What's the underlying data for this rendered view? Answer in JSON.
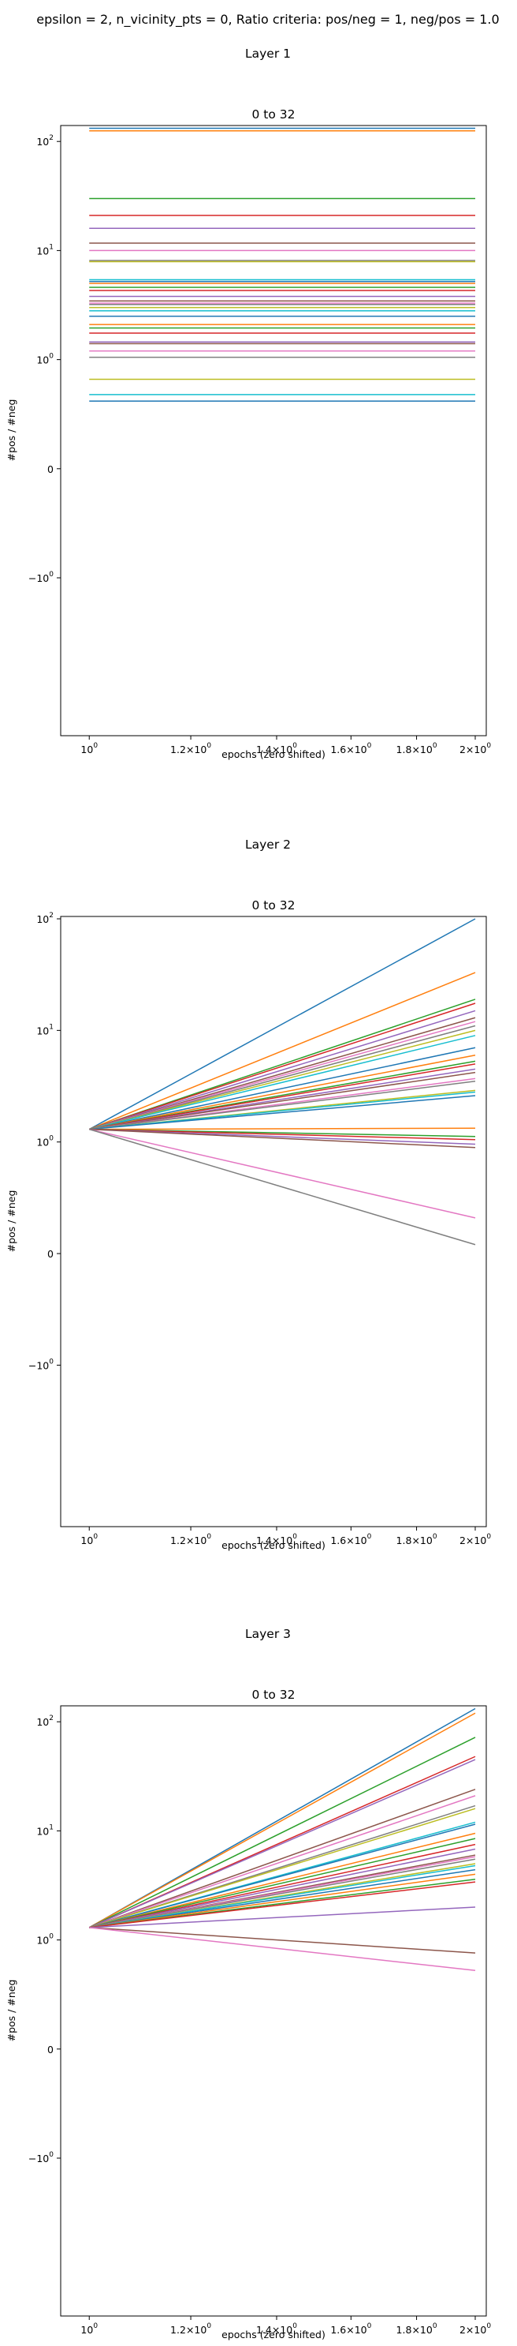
{
  "figure": {
    "suptitle": "epsilon = 2, n_vicinity_pts = 0, Ratio criteria: pos/neg = 1, neg/pos = 1.0"
  },
  "palette": [
    "#1f77b4",
    "#ff7f0e",
    "#2ca02c",
    "#d62728",
    "#9467bd",
    "#8c564b",
    "#e377c2",
    "#7f7f7f",
    "#bcbd22",
    "#17becf"
  ],
  "chart_data": [
    {
      "type": "line",
      "section_title": "Layer 1",
      "title": "0 to 32",
      "xlabel": "epochs (zero shifted)",
      "ylabel": "#pos / #neg",
      "x": [
        1,
        2
      ],
      "xlim": [
        0.95,
        2.04
      ],
      "ylim": [
        -28,
        140
      ],
      "yscale": "symlog",
      "grid": false,
      "legend": "none",
      "xticks": [
        1,
        1.2,
        1.4,
        1.6,
        1.8,
        2
      ],
      "xtick_labels": [
        {
          "base": "10",
          "mantissa": "",
          "times": "",
          "exp": "0"
        },
        {
          "base": "10",
          "mantissa": "1.2",
          "times": "×",
          "exp": "0"
        },
        {
          "base": "10",
          "mantissa": "1.4",
          "times": "×",
          "exp": "0"
        },
        {
          "base": "10",
          "mantissa": "1.6",
          "times": "×",
          "exp": "0"
        },
        {
          "base": "10",
          "mantissa": "1.8",
          "times": "×",
          "exp": "0"
        },
        {
          "base": "10",
          "mantissa": "2",
          "times": "×",
          "exp": "0"
        }
      ],
      "yticks": [
        100,
        10,
        1,
        0,
        -1
      ],
      "ytick_labels": [
        {
          "sign": "",
          "base": "10",
          "exp": "2"
        },
        {
          "sign": "",
          "base": "10",
          "exp": "1"
        },
        {
          "sign": "",
          "base": "10",
          "exp": "0"
        },
        {
          "sign": "",
          "base": "0",
          "exp": ""
        },
        {
          "sign": "−",
          "base": "10",
          "exp": "0"
        }
      ],
      "series": [
        {
          "values": [
            132,
            132
          ]
        },
        {
          "values": [
            125,
            125
          ]
        },
        {
          "values": [
            30,
            30
          ]
        },
        {
          "values": [
            21,
            21
          ]
        },
        {
          "values": [
            16,
            16
          ]
        },
        {
          "values": [
            11.7,
            11.7
          ]
        },
        {
          "values": [
            10,
            10
          ]
        },
        {
          "values": [
            8.1,
            8.1
          ]
        },
        {
          "values": [
            7.9,
            7.9
          ]
        },
        {
          "values": [
            5.4,
            5.4
          ]
        },
        {
          "values": [
            5.2,
            5.2
          ]
        },
        {
          "values": [
            5.0,
            5.0
          ]
        },
        {
          "values": [
            4.6,
            4.6
          ]
        },
        {
          "values": [
            4.3,
            4.3
          ]
        },
        {
          "values": [
            3.8,
            3.8
          ]
        },
        {
          "values": [
            3.45,
            3.45
          ]
        },
        {
          "values": [
            3.3,
            3.3
          ]
        },
        {
          "values": [
            3.2,
            3.2
          ]
        },
        {
          "values": [
            3.0,
            3.0
          ]
        },
        {
          "values": [
            2.8,
            2.8
          ]
        },
        {
          "values": [
            2.5,
            2.5
          ]
        },
        {
          "values": [
            2.1,
            2.1
          ]
        },
        {
          "values": [
            1.95,
            1.95
          ]
        },
        {
          "values": [
            1.75,
            1.75
          ]
        },
        {
          "values": [
            1.45,
            1.45
          ]
        },
        {
          "values": [
            1.4,
            1.4
          ]
        },
        {
          "values": [
            1.2,
            1.2
          ]
        },
        {
          "values": [
            1.05,
            1.05
          ]
        },
        {
          "values": [
            0.82,
            0.82
          ]
        },
        {
          "values": [
            0.68,
            0.68
          ]
        },
        {
          "values": [
            0.62,
            0.62
          ]
        }
      ]
    },
    {
      "type": "line",
      "section_title": "Layer 2",
      "title": "0 to 32",
      "xlabel": "epochs (zero shifted)",
      "ylabel": "#pos / #neg",
      "x": [
        1,
        2
      ],
      "xlim": [
        0.95,
        2.04
      ],
      "ylim": [
        -28,
        105
      ],
      "yscale": "symlog",
      "grid": false,
      "legend": "none",
      "xticks": [
        1,
        1.2,
        1.4,
        1.6,
        1.8,
        2
      ],
      "xtick_labels": [
        {
          "base": "10",
          "mantissa": "",
          "times": "",
          "exp": "0"
        },
        {
          "base": "10",
          "mantissa": "1.2",
          "times": "×",
          "exp": "0"
        },
        {
          "base": "10",
          "mantissa": "1.4",
          "times": "×",
          "exp": "0"
        },
        {
          "base": "10",
          "mantissa": "1.6",
          "times": "×",
          "exp": "0"
        },
        {
          "base": "10",
          "mantissa": "1.8",
          "times": "×",
          "exp": "0"
        },
        {
          "base": "10",
          "mantissa": "2",
          "times": "×",
          "exp": "0"
        }
      ],
      "yticks": [
        100,
        10,
        1,
        0,
        -1
      ],
      "ytick_labels": [
        {
          "sign": "",
          "base": "10",
          "exp": "2"
        },
        {
          "sign": "",
          "base": "10",
          "exp": "1"
        },
        {
          "sign": "",
          "base": "10",
          "exp": "0"
        },
        {
          "sign": "",
          "base": "0",
          "exp": ""
        },
        {
          "sign": "−",
          "base": "10",
          "exp": "0"
        }
      ],
      "series": [
        {
          "values": [
            1.3,
            100
          ]
        },
        {
          "values": [
            1.3,
            33
          ]
        },
        {
          "values": [
            1.3,
            19
          ]
        },
        {
          "values": [
            1.3,
            17.5
          ]
        },
        {
          "values": [
            1.3,
            15
          ]
        },
        {
          "values": [
            1.3,
            13
          ]
        },
        {
          "values": [
            1.3,
            12
          ]
        },
        {
          "values": [
            1.3,
            11
          ]
        },
        {
          "values": [
            1.3,
            10
          ]
        },
        {
          "values": [
            1.3,
            9
          ]
        },
        {
          "values": [
            1.3,
            7
          ]
        },
        {
          "values": [
            1.3,
            6
          ]
        },
        {
          "values": [
            1.3,
            5.3
          ]
        },
        {
          "values": [
            1.3,
            5
          ]
        },
        {
          "values": [
            1.3,
            4.5
          ]
        },
        {
          "values": [
            1.3,
            4.2
          ]
        },
        {
          "values": [
            1.3,
            3.7
          ]
        },
        {
          "values": [
            1.3,
            3.5
          ]
        },
        {
          "values": [
            1.3,
            2.9
          ]
        },
        {
          "values": [
            1.3,
            2.8
          ]
        },
        {
          "values": [
            1.3,
            2.6
          ]
        },
        {
          "values": [
            1.3,
            1.33
          ]
        },
        {
          "values": [
            1.3,
            1.12
          ]
        },
        {
          "values": [
            1.3,
            1.05
          ]
        },
        {
          "values": [
            1.3,
            0.98
          ]
        },
        {
          "values": [
            1.3,
            0.95
          ]
        },
        {
          "values": [
            1.3,
            0.32
          ]
        },
        {
          "values": [
            1.3,
            0.08
          ]
        }
      ]
    },
    {
      "type": "line",
      "section_title": "Layer 3",
      "title": "0 to 32",
      "xlabel": "epochs (zero shifted)",
      "ylabel": "#pos / #neg",
      "x": [
        1,
        2
      ],
      "xlim": [
        0.95,
        2.04
      ],
      "ylim": [
        -28,
        140
      ],
      "yscale": "symlog",
      "grid": false,
      "legend": "none",
      "xticks": [
        1,
        1.2,
        1.4,
        1.6,
        1.8,
        2
      ],
      "xtick_labels": [
        {
          "base": "10",
          "mantissa": "",
          "times": "",
          "exp": "0"
        },
        {
          "base": "10",
          "mantissa": "1.2",
          "times": "×",
          "exp": "0"
        },
        {
          "base": "10",
          "mantissa": "1.4",
          "times": "×",
          "exp": "0"
        },
        {
          "base": "10",
          "mantissa": "1.6",
          "times": "×",
          "exp": "0"
        },
        {
          "base": "10",
          "mantissa": "1.8",
          "times": "×",
          "exp": "0"
        },
        {
          "base": "10",
          "mantissa": "2",
          "times": "×",
          "exp": "0"
        }
      ],
      "yticks": [
        100,
        10,
        1,
        0,
        -1
      ],
      "ytick_labels": [
        {
          "sign": "",
          "base": "10",
          "exp": "2"
        },
        {
          "sign": "",
          "base": "10",
          "exp": "1"
        },
        {
          "sign": "",
          "base": "10",
          "exp": "0"
        },
        {
          "sign": "",
          "base": "0",
          "exp": ""
        },
        {
          "sign": "−",
          "base": "10",
          "exp": "0"
        }
      ],
      "series": [
        {
          "values": [
            1.3,
            132
          ]
        },
        {
          "values": [
            1.3,
            120
          ]
        },
        {
          "values": [
            1.3,
            72
          ]
        },
        {
          "values": [
            1.3,
            48
          ]
        },
        {
          "values": [
            1.3,
            45
          ]
        },
        {
          "values": [
            1.3,
            24
          ]
        },
        {
          "values": [
            1.3,
            21
          ]
        },
        {
          "values": [
            1.3,
            17
          ]
        },
        {
          "values": [
            1.3,
            16
          ]
        },
        {
          "values": [
            1.3,
            12
          ]
        },
        {
          "values": [
            1.3,
            11.5
          ]
        },
        {
          "values": [
            1.3,
            9.5
          ]
        },
        {
          "values": [
            1.3,
            8.5
          ]
        },
        {
          "values": [
            1.3,
            7.5
          ]
        },
        {
          "values": [
            1.3,
            6.8
          ]
        },
        {
          "values": [
            1.3,
            6.0
          ]
        },
        {
          "values": [
            1.3,
            5.8
          ]
        },
        {
          "values": [
            1.3,
            5.5
          ]
        },
        {
          "values": [
            1.3,
            5.0
          ]
        },
        {
          "values": [
            1.3,
            4.8
          ]
        },
        {
          "values": [
            1.3,
            4.4
          ]
        },
        {
          "values": [
            1.3,
            4.0
          ]
        },
        {
          "values": [
            1.3,
            3.6
          ]
        },
        {
          "values": [
            1.3,
            3.4
          ]
        },
        {
          "values": [
            1.3,
            2.0
          ]
        },
        {
          "values": [
            1.3,
            0.88
          ]
        },
        {
          "values": [
            1.3,
            0.72
          ]
        }
      ]
    }
  ]
}
